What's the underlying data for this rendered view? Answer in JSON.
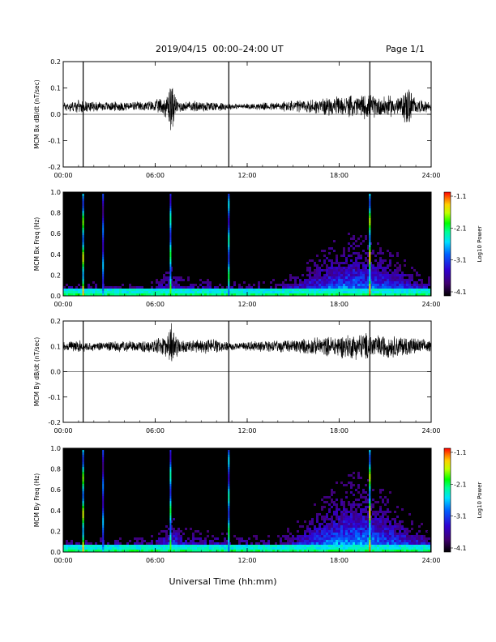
{
  "header": {
    "title": "2019/04/15  00:00–24:00 UT",
    "page": "Page 1/1"
  },
  "chart_data": [
    {
      "type": "line",
      "panel": "bx-dbdt",
      "ylabel": "MCM Bx dB/dt (nT/sec)",
      "xlabel": "",
      "xlim": [
        0,
        24
      ],
      "ylim": [
        -0.2,
        0.2
      ],
      "x_ticks": [
        "00:00",
        "06:00",
        "12:00",
        "18:00",
        "24:00"
      ],
      "y_ticks": [
        "-0.2",
        "-0.1",
        "0.0",
        "0.1",
        "0.2"
      ],
      "baseline": 0.03,
      "envelope": {
        "x": [
          0,
          1,
          2,
          3,
          4,
          5,
          6,
          6.8,
          7.0,
          7.2,
          7.4,
          8,
          9,
          10,
          10.8,
          11.5,
          12,
          13,
          14,
          15,
          16,
          17,
          18,
          19,
          19.7,
          20.5,
          21,
          22,
          22.5,
          23,
          24
        ],
        "amp": [
          0.02,
          0.025,
          0.02,
          0.02,
          0.02,
          0.02,
          0.025,
          0.05,
          0.14,
          0.07,
          0.03,
          0.02,
          0.025,
          0.02,
          0.015,
          0.01,
          0.012,
          0.015,
          0.02,
          0.025,
          0.03,
          0.035,
          0.04,
          0.045,
          0.05,
          0.045,
          0.045,
          0.04,
          0.09,
          0.03,
          0.02
        ]
      },
      "spikes": [
        {
          "x": 1.3,
          "y0": -0.2,
          "y1": 0.2
        },
        {
          "x": 10.8,
          "y0": -0.2,
          "y1": 0.2
        },
        {
          "x": 20.0,
          "y0": -0.2,
          "y1": 0.2
        }
      ]
    },
    {
      "type": "heatmap",
      "panel": "bx-spectrogram",
      "ylabel": "MCM Bx Freq (Hz)",
      "xlim": [
        0,
        24
      ],
      "ylim": [
        0,
        1.0
      ],
      "x_ticks": [
        "00:00",
        "06:00",
        "12:00",
        "18:00",
        "24:00"
      ],
      "y_ticks": [
        "0.0",
        "0.2",
        "0.4",
        "0.6",
        "0.8",
        "1.0"
      ],
      "colorbar": {
        "label": "Log10 Power",
        "ticks": [
          "-1.1",
          "-2.1",
          "-3.1",
          "-4.1"
        ],
        "range": [
          -4.1,
          -1.1
        ]
      },
      "activity": {
        "x": [
          0,
          2,
          4,
          6,
          7.2,
          8,
          10,
          12,
          14,
          15,
          16,
          17,
          18,
          19,
          20,
          21,
          22,
          23,
          24
        ],
        "height": [
          0.08,
          0.1,
          0.08,
          0.1,
          0.25,
          0.15,
          0.12,
          0.1,
          0.12,
          0.18,
          0.28,
          0.38,
          0.45,
          0.48,
          0.45,
          0.4,
          0.3,
          0.22,
          0.15
        ],
        "level": [
          0.25,
          0.25,
          0.22,
          0.25,
          0.35,
          0.28,
          0.25,
          0.22,
          0.25,
          0.28,
          0.35,
          0.42,
          0.45,
          0.48,
          0.45,
          0.42,
          0.38,
          0.32,
          0.28
        ]
      },
      "vertical_lines": [
        {
          "x": 1.3,
          "intensity": 0.9
        },
        {
          "x": 2.6,
          "intensity": 0.55
        },
        {
          "x": 7.0,
          "intensity": 0.75
        },
        {
          "x": 10.8,
          "intensity": 0.7
        },
        {
          "x": 20.0,
          "intensity": 0.95
        }
      ]
    },
    {
      "type": "line",
      "panel": "by-dbdt",
      "ylabel": "MCM By dB/dt (nT/sec)",
      "xlabel": "",
      "xlim": [
        0,
        24
      ],
      "ylim": [
        -0.2,
        0.2
      ],
      "x_ticks": [
        "00:00",
        "06:00",
        "12:00",
        "18:00",
        "24:00"
      ],
      "y_ticks": [
        "-0.2",
        "-0.1",
        "0.0",
        "0.1",
        "0.2"
      ],
      "baseline": 0.1,
      "envelope": {
        "x": [
          0,
          1,
          2,
          3,
          4,
          5,
          6,
          6.8,
          7.0,
          7.2,
          7.6,
          8,
          9,
          10,
          10.8,
          11.5,
          12,
          13,
          14,
          15,
          16,
          17,
          18,
          19,
          19.7,
          20.5,
          21,
          22,
          22.5,
          23,
          24
        ],
        "amp": [
          0.02,
          0.025,
          0.02,
          0.02,
          0.025,
          0.025,
          0.03,
          0.05,
          0.12,
          0.06,
          0.03,
          0.025,
          0.03,
          0.03,
          0.02,
          0.015,
          0.02,
          0.025,
          0.025,
          0.03,
          0.035,
          0.04,
          0.05,
          0.055,
          0.06,
          0.05,
          0.05,
          0.045,
          0.045,
          0.035,
          0.025
        ]
      },
      "spikes": [
        {
          "x": 1.3,
          "y0": -0.2,
          "y1": 0.2
        },
        {
          "x": 10.8,
          "y0": -0.2,
          "y1": 0.2
        },
        {
          "x": 20.0,
          "y0": -0.2,
          "y1": 0.2
        }
      ]
    },
    {
      "type": "heatmap",
      "panel": "by-spectrogram",
      "ylabel": "MCM By Freq (Hz)",
      "xlim": [
        0,
        24
      ],
      "ylim": [
        0,
        1.0
      ],
      "x_ticks": [
        "00:00",
        "06:00",
        "12:00",
        "18:00",
        "24:00"
      ],
      "y_ticks": [
        "0.0",
        "0.2",
        "0.4",
        "0.6",
        "0.8",
        "1.0"
      ],
      "xlabel": "Universal Time (hh:mm)",
      "colorbar": {
        "label": "Log10 Power",
        "ticks": [
          "-1.1",
          "-2.1",
          "-3.1",
          "-4.1"
        ],
        "range": [
          -4.1,
          -1.1
        ]
      },
      "activity": {
        "x": [
          0,
          2,
          4,
          6,
          7.2,
          8,
          10,
          12,
          14,
          15,
          16,
          17,
          18,
          19,
          20,
          21,
          22,
          23,
          24
        ],
        "height": [
          0.08,
          0.1,
          0.1,
          0.12,
          0.3,
          0.18,
          0.15,
          0.12,
          0.12,
          0.2,
          0.3,
          0.42,
          0.52,
          0.58,
          0.55,
          0.45,
          0.35,
          0.25,
          0.15
        ],
        "level": [
          0.25,
          0.25,
          0.25,
          0.28,
          0.38,
          0.3,
          0.28,
          0.25,
          0.25,
          0.3,
          0.38,
          0.45,
          0.5,
          0.52,
          0.5,
          0.45,
          0.4,
          0.35,
          0.28
        ]
      },
      "vertical_lines": [
        {
          "x": 1.3,
          "intensity": 0.9
        },
        {
          "x": 2.6,
          "intensity": 0.55
        },
        {
          "x": 7.0,
          "intensity": 0.75
        },
        {
          "x": 10.8,
          "intensity": 0.7
        },
        {
          "x": 20.0,
          "intensity": 0.95
        }
      ]
    }
  ]
}
